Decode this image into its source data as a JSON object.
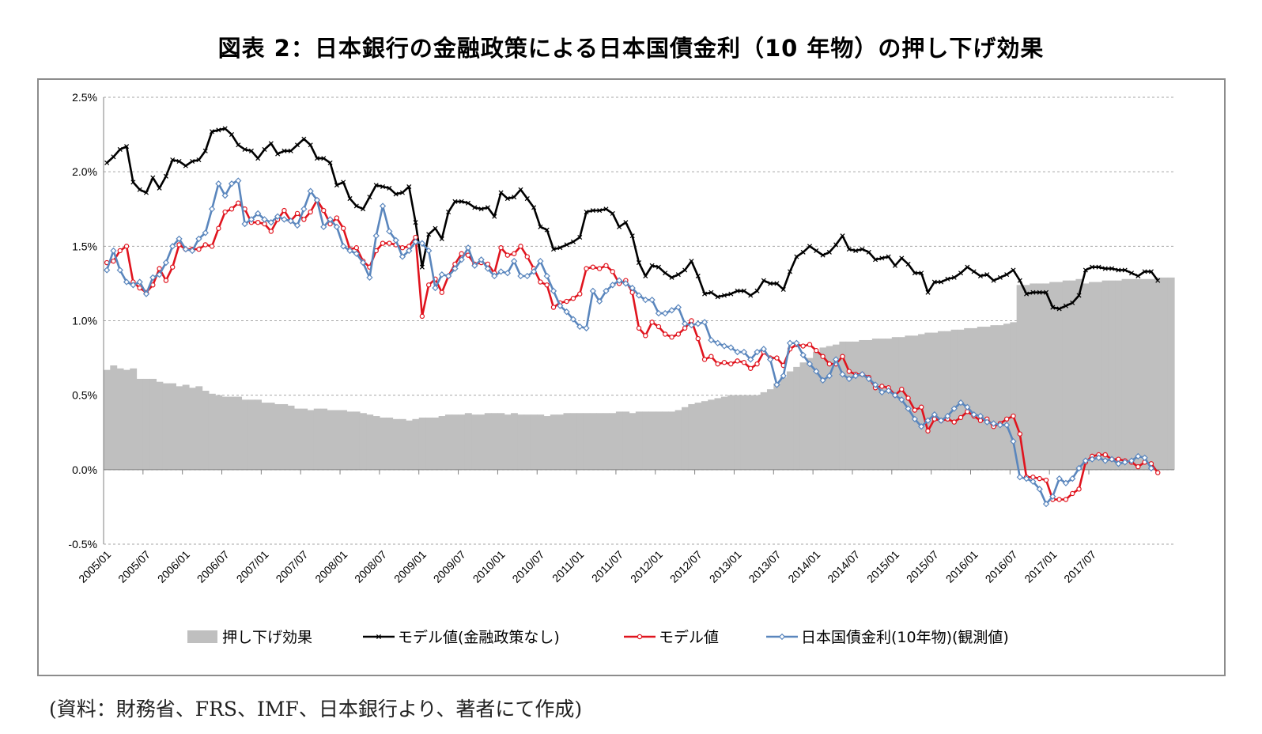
{
  "title": "図表 2：日本銀行の金融政策による日本国債金利（10 年物）の押し下げ効果",
  "source": "(資料：財務省、FRS、IMF、日本銀行より、著者にて作成)",
  "chart_data": {
    "type": "line",
    "title": "図表 2：日本銀行の金融政策による日本国債金利（10 年物）の押し下げ効果",
    "xlabel": "",
    "ylabel": "",
    "ylim": [
      -0.5,
      2.5
    ],
    "yticks": [
      -0.5,
      0.0,
      0.5,
      1.0,
      1.5,
      2.0,
      2.5
    ],
    "ytick_labels": [
      "-0.5%",
      "0.0%",
      "0.5%",
      "1.0%",
      "1.5%",
      "2.0%",
      "2.5%"
    ],
    "x_start": "2005/01",
    "x_end": "2017/09",
    "xtick_labels": [
      "2005/01",
      "2005/07",
      "2006/01",
      "2006/07",
      "2007/01",
      "2007/07",
      "2008/01",
      "2008/07",
      "2009/01",
      "2009/07",
      "2010/01",
      "2010/07",
      "2011/01",
      "2011/07",
      "2012/01",
      "2012/07",
      "2013/01",
      "2013/07",
      "2014/01",
      "2014/07",
      "2015/01",
      "2015/07",
      "2016/01",
      "2016/07",
      "2017/01",
      "2017/07"
    ],
    "grid": "horizontal dashed",
    "legend_position": "bottom",
    "series": [
      {
        "name": "押し下げ効果",
        "kind": "area",
        "color": "#bfbfbf",
        "values": [
          0.67,
          0.7,
          0.68,
          0.67,
          0.68,
          0.61,
          0.61,
          0.61,
          0.59,
          0.58,
          0.58,
          0.56,
          0.57,
          0.55,
          0.56,
          0.53,
          0.51,
          0.5,
          0.49,
          0.49,
          0.49,
          0.47,
          0.47,
          0.47,
          0.45,
          0.45,
          0.44,
          0.44,
          0.43,
          0.41,
          0.41,
          0.4,
          0.41,
          0.41,
          0.4,
          0.4,
          0.4,
          0.39,
          0.39,
          0.38,
          0.37,
          0.36,
          0.35,
          0.35,
          0.34,
          0.34,
          0.33,
          0.34,
          0.35,
          0.35,
          0.35,
          0.36,
          0.37,
          0.37,
          0.37,
          0.38,
          0.37,
          0.37,
          0.38,
          0.38,
          0.38,
          0.37,
          0.38,
          0.37,
          0.37,
          0.37,
          0.37,
          0.36,
          0.37,
          0.37,
          0.38,
          0.38,
          0.38,
          0.38,
          0.38,
          0.38,
          0.38,
          0.38,
          0.39,
          0.39,
          0.38,
          0.39,
          0.39,
          0.39,
          0.39,
          0.39,
          0.39,
          0.4,
          0.42,
          0.44,
          0.45,
          0.46,
          0.47,
          0.48,
          0.49,
          0.5,
          0.5,
          0.5,
          0.5,
          0.5,
          0.52,
          0.54,
          0.58,
          0.62,
          0.66,
          0.69,
          0.72,
          0.75,
          0.79,
          0.82,
          0.83,
          0.84,
          0.86,
          0.86,
          0.86,
          0.87,
          0.87,
          0.88,
          0.88,
          0.88,
          0.89,
          0.89,
          0.9,
          0.9,
          0.91,
          0.92,
          0.92,
          0.93,
          0.93,
          0.94,
          0.94,
          0.95,
          0.95,
          0.96,
          0.96,
          0.97,
          0.97,
          0.98,
          0.99,
          1.24,
          1.24,
          1.25,
          1.25,
          1.25,
          1.26,
          1.26,
          1.27,
          1.27,
          1.28,
          1.25,
          1.26,
          1.26,
          1.27,
          1.27,
          1.27,
          1.28,
          1.28,
          1.28,
          1.28,
          1.28,
          1.29,
          1.29,
          1.29
        ]
      },
      {
        "name": "モデル値(金融政策なし)",
        "kind": "line",
        "color": "#000000",
        "marker": "x",
        "values": [
          2.06,
          2.1,
          2.15,
          2.17,
          1.93,
          1.88,
          1.86,
          1.96,
          1.89,
          1.97,
          2.08,
          2.07,
          2.04,
          2.07,
          2.08,
          2.14,
          2.27,
          2.28,
          2.29,
          2.25,
          2.18,
          2.15,
          2.14,
          2.09,
          2.15,
          2.19,
          2.12,
          2.14,
          2.14,
          2.18,
          2.22,
          2.18,
          2.09,
          2.09,
          2.06,
          1.91,
          1.93,
          1.82,
          1.77,
          1.75,
          1.83,
          1.91,
          1.9,
          1.89,
          1.85,
          1.86,
          1.9,
          1.66,
          1.36,
          1.58,
          1.62,
          1.55,
          1.73,
          1.8,
          1.8,
          1.79,
          1.76,
          1.75,
          1.76,
          1.7,
          1.86,
          1.82,
          1.83,
          1.88,
          1.82,
          1.76,
          1.63,
          1.61,
          1.48,
          1.49,
          1.51,
          1.53,
          1.56,
          1.73,
          1.74,
          1.74,
          1.75,
          1.72,
          1.63,
          1.66,
          1.57,
          1.39,
          1.3,
          1.37,
          1.36,
          1.32,
          1.29,
          1.31,
          1.34,
          1.4,
          1.3,
          1.18,
          1.19,
          1.16,
          1.17,
          1.18,
          1.2,
          1.2,
          1.17,
          1.2,
          1.27,
          1.25,
          1.25,
          1.21,
          1.33,
          1.43,
          1.46,
          1.5,
          1.47,
          1.44,
          1.46,
          1.51,
          1.57,
          1.48,
          1.47,
          1.48,
          1.46,
          1.41,
          1.42,
          1.43,
          1.37,
          1.42,
          1.38,
          1.32,
          1.32,
          1.19,
          1.26,
          1.26,
          1.28,
          1.29,
          1.32,
          1.36,
          1.33,
          1.3,
          1.31,
          1.27,
          1.29,
          1.31,
          1.34,
          1.27,
          1.18,
          1.19,
          1.19,
          1.19,
          1.09,
          1.08,
          1.1,
          1.12,
          1.17,
          1.34,
          1.36,
          1.36,
          1.35,
          1.35,
          1.34,
          1.34,
          1.32,
          1.3,
          1.33,
          1.33,
          1.27
        ]
      },
      {
        "name": "モデル値",
        "kind": "line",
        "color": "#e0141e",
        "marker": "circle",
        "values": [
          1.39,
          1.4,
          1.47,
          1.5,
          1.26,
          1.22,
          1.19,
          1.24,
          1.35,
          1.27,
          1.36,
          1.51,
          1.48,
          1.48,
          1.48,
          1.51,
          1.5,
          1.62,
          1.73,
          1.75,
          1.79,
          1.75,
          1.66,
          1.66,
          1.65,
          1.6,
          1.68,
          1.74,
          1.67,
          1.72,
          1.68,
          1.73,
          1.81,
          1.74,
          1.65,
          1.69,
          1.62,
          1.48,
          1.49,
          1.4,
          1.36,
          1.47,
          1.52,
          1.52,
          1.51,
          1.49,
          1.5,
          1.56,
          1.03,
          1.24,
          1.28,
          1.19,
          1.3,
          1.38,
          1.45,
          1.44,
          1.38,
          1.39,
          1.38,
          1.32,
          1.49,
          1.44,
          1.45,
          1.5,
          1.43,
          1.35,
          1.26,
          1.24,
          1.09,
          1.12,
          1.13,
          1.15,
          1.18,
          1.35,
          1.36,
          1.35,
          1.37,
          1.33,
          1.25,
          1.27,
          1.19,
          0.95,
          0.9,
          0.99,
          0.96,
          0.91,
          0.89,
          0.91,
          0.95,
          1.0,
          0.88,
          0.74,
          0.76,
          0.71,
          0.72,
          0.71,
          0.73,
          0.72,
          0.68,
          0.71,
          0.79,
          0.75,
          0.75,
          0.7,
          0.81,
          0.84,
          0.83,
          0.84,
          0.8,
          0.76,
          0.71,
          0.71,
          0.76,
          0.66,
          0.64,
          0.64,
          0.62,
          0.55,
          0.56,
          0.55,
          0.5,
          0.54,
          0.48,
          0.4,
          0.42,
          0.26,
          0.34,
          0.33,
          0.34,
          0.32,
          0.35,
          0.39,
          0.36,
          0.33,
          0.34,
          0.29,
          0.31,
          0.34,
          0.36,
          0.24,
          -0.05,
          -0.05,
          -0.06,
          -0.07,
          -0.2,
          -0.2,
          -0.2,
          -0.16,
          -0.13,
          0.05,
          0.09,
          0.1,
          0.1,
          0.07,
          0.07,
          0.06,
          0.05,
          0.02,
          0.05,
          0.04,
          -0.02
        ]
      },
      {
        "name": "日本国債金利(10年物)(観測値)",
        "kind": "line",
        "color": "#5a86bd",
        "marker": "diamond",
        "values": [
          1.34,
          1.47,
          1.34,
          1.26,
          1.24,
          1.26,
          1.18,
          1.29,
          1.31,
          1.39,
          1.5,
          1.55,
          1.48,
          1.47,
          1.55,
          1.59,
          1.75,
          1.92,
          1.84,
          1.92,
          1.94,
          1.65,
          1.68,
          1.72,
          1.68,
          1.66,
          1.7,
          1.68,
          1.67,
          1.64,
          1.75,
          1.87,
          1.81,
          1.63,
          1.68,
          1.63,
          1.5,
          1.47,
          1.45,
          1.39,
          1.29,
          1.57,
          1.77,
          1.6,
          1.54,
          1.43,
          1.47,
          1.53,
          1.52,
          1.47,
          1.22,
          1.31,
          1.3,
          1.35,
          1.41,
          1.49,
          1.37,
          1.41,
          1.35,
          1.3,
          1.33,
          1.32,
          1.4,
          1.3,
          1.3,
          1.33,
          1.4,
          1.3,
          1.2,
          1.1,
          1.06,
          1.01,
          0.96,
          0.95,
          1.2,
          1.13,
          1.2,
          1.24,
          1.27,
          1.25,
          1.22,
          1.17,
          1.14,
          1.14,
          1.05,
          1.05,
          1.07,
          1.09,
          0.98,
          0.97,
          0.98,
          0.99,
          0.87,
          0.85,
          0.83,
          0.82,
          0.79,
          0.79,
          0.74,
          0.79,
          0.81,
          0.74,
          0.57,
          0.63,
          0.85,
          0.85,
          0.77,
          0.71,
          0.66,
          0.6,
          0.63,
          0.74,
          0.64,
          0.61,
          0.63,
          0.64,
          0.61,
          0.57,
          0.52,
          0.53,
          0.5,
          0.47,
          0.41,
          0.34,
          0.29,
          0.33,
          0.37,
          0.33,
          0.36,
          0.41,
          0.45,
          0.42,
          0.37,
          0.36,
          0.32,
          0.31,
          0.3,
          0.3,
          0.19,
          -0.05,
          -0.06,
          -0.08,
          -0.13,
          -0.23,
          -0.18,
          -0.06,
          -0.09,
          -0.06,
          0.01,
          0.06,
          0.07,
          0.08,
          0.06,
          0.07,
          0.04,
          0.05,
          0.06,
          0.09,
          0.08,
          0.01
        ]
      }
    ]
  }
}
